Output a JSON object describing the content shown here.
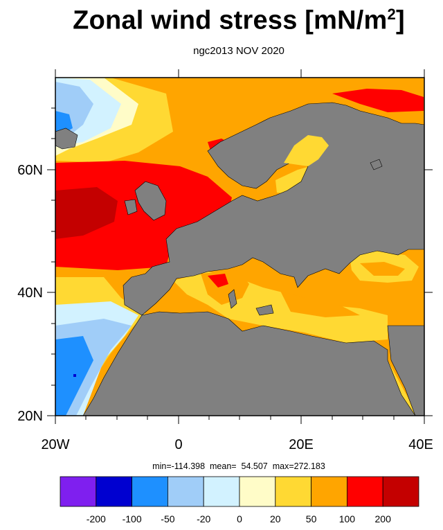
{
  "title": "Zonal wind stress [mN/m",
  "title_sup": "2",
  "title_close": "]",
  "subtitle": "ngc2013 NOV 2020",
  "x_tick_labels": [
    "20W",
    "0",
    "20E",
    "40E"
  ],
  "y_tick_labels": [
    "60N",
    "40N",
    "20N"
  ],
  "stats": {
    "min_label": "min=",
    "min": "-114.398",
    "mean_label": "mean=",
    "mean": "54.507",
    "max_label": "max=",
    "max": "272.183"
  },
  "colorbar": {
    "colors": [
      "#7f1fef",
      "#0000d0",
      "#1e90ff",
      "#a0cdf8",
      "#d2f2ff",
      "#fffcc8",
      "#ffd933",
      "#ffa500",
      "#ff0000",
      "#c40000"
    ],
    "labels": [
      "-200",
      "-100",
      "-50",
      "-20",
      "0",
      "20",
      "50",
      "100",
      "200"
    ]
  },
  "colors": {
    "land": "#808080",
    "coast": "#000000"
  }
}
